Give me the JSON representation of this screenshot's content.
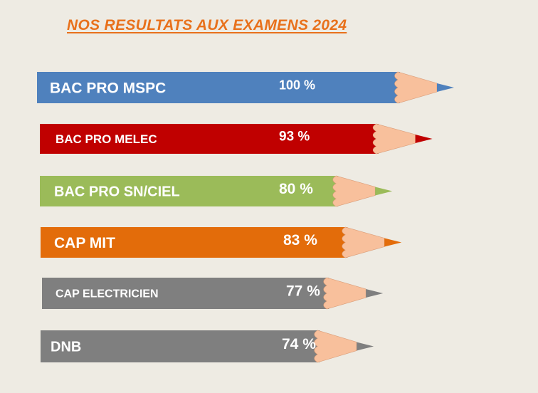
{
  "title": "NOS RESULTATS AUX EXAMENS 2024",
  "chart_data": {
    "type": "bar",
    "orientation": "horizontal",
    "title": "NOS RESULTATS AUX EXAMENS 2024",
    "categories": [
      "BAC PRO MSPC",
      "BAC PRO MELEC",
      "BAC PRO SN/CIEL",
      "CAP MIT",
      "CAP ELECTRICIEN",
      "DNB"
    ],
    "values": [
      100,
      93,
      80,
      83,
      77,
      74
    ],
    "value_labels": [
      "100 %",
      "93 %",
      "80 %",
      "83 %",
      "77 %",
      "74 %"
    ],
    "unit": "%",
    "colors": [
      "#4f81bd",
      "#c00000",
      "#9bbb59",
      "#e36c0a",
      "#7f7f7f",
      "#7f7f7f"
    ],
    "tip_color": "#f8c09c",
    "grid": false,
    "legend": "none"
  }
}
